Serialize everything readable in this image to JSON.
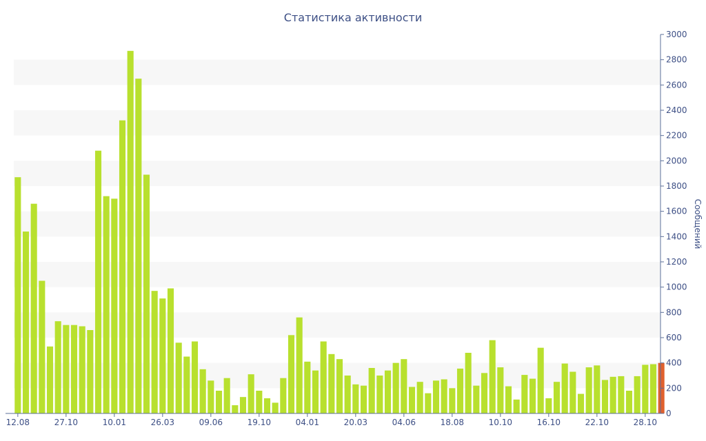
{
  "chart_data": {
    "type": "bar",
    "title": "Статистика активности",
    "xlabel": "",
    "ylabel": "Сообщений",
    "ylim": [
      0,
      3000
    ],
    "y_ticks": [
      0,
      200,
      400,
      600,
      800,
      1000,
      1200,
      1400,
      1600,
      1800,
      2000,
      2200,
      2400,
      2600,
      2800,
      3000
    ],
    "x_tick_labels": [
      {
        "index": 0,
        "label": "12.08"
      },
      {
        "index": 6,
        "label": "27.10"
      },
      {
        "index": 12,
        "label": "10.01"
      },
      {
        "index": 18,
        "label": "26.03"
      },
      {
        "index": 24,
        "label": "09.06"
      },
      {
        "index": 30,
        "label": "19.10"
      },
      {
        "index": 36,
        "label": "04.01"
      },
      {
        "index": 42,
        "label": "20.03"
      },
      {
        "index": 48,
        "label": "04.06"
      },
      {
        "index": 54,
        "label": "18.08"
      },
      {
        "index": 60,
        "label": "10.10"
      },
      {
        "index": 66,
        "label": "16.10"
      },
      {
        "index": 72,
        "label": "22.10"
      },
      {
        "index": 78,
        "label": "28.10"
      }
    ],
    "grid": "horizontal bands",
    "colors": {
      "bar": "#b8e02e",
      "highlight": "#e0612e",
      "band": "#f7f7f7",
      "text": "#3d4f85"
    },
    "highlight_index": 80,
    "values": [
      1870,
      1440,
      1660,
      1050,
      530,
      730,
      700,
      700,
      690,
      660,
      2080,
      1720,
      1700,
      2320,
      2870,
      2650,
      1890,
      970,
      910,
      990,
      560,
      450,
      570,
      350,
      260,
      180,
      280,
      65,
      130,
      310,
      180,
      120,
      85,
      280,
      620,
      760,
      410,
      340,
      570,
      470,
      430,
      300,
      230,
      220,
      360,
      300,
      340,
      400,
      430,
      210,
      250,
      160,
      260,
      270,
      200,
      355,
      480,
      220,
      320,
      580,
      365,
      215,
      110,
      305,
      275,
      520,
      120,
      250,
      395,
      330,
      155,
      365,
      380,
      265,
      290,
      295,
      180,
      295,
      385,
      390,
      400
    ]
  }
}
